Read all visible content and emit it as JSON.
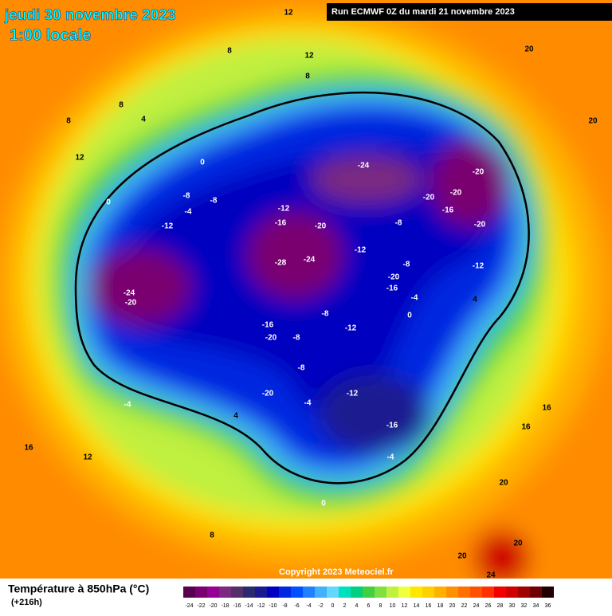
{
  "header": {
    "date": "jeudi 30 novembre 2023",
    "time": "1:00 locale",
    "run": "Run ECMWF 0Z du mardi 21 novembre 2023"
  },
  "footer": {
    "title": "Température à 850hPa (°C)",
    "lead": "(+216h)",
    "copyright": "Copyright 2023 Meteociel.fr"
  },
  "legend": {
    "labels": [
      "-24",
      "-22",
      "-20",
      "-18",
      "-16",
      "-14",
      "-12",
      "-10",
      "-8",
      "-6",
      "-4",
      "-2",
      "0",
      "2",
      "4",
      "6",
      "8",
      "10",
      "12",
      "14",
      "16",
      "18",
      "20",
      "22",
      "24",
      "26",
      "28",
      "30",
      "32",
      "34",
      "36"
    ],
    "colors": [
      "#5a0050",
      "#7a0070",
      "#950095",
      "#7a2a80",
      "#553068",
      "#2a2a70",
      "#1a1a90",
      "#0000c0",
      "#0028e0",
      "#0050ff",
      "#2080ff",
      "#40b0ff",
      "#60d8ff",
      "#00e0c0",
      "#00d080",
      "#40d040",
      "#80e040",
      "#c0f040",
      "#f0ff40",
      "#ffe800",
      "#ffd000",
      "#ffb000",
      "#ff9000",
      "#ff7000",
      "#ff5000",
      "#ff3000",
      "#f00000",
      "#d00000",
      "#a00000",
      "#700000",
      "#200000"
    ]
  },
  "contour_labels": [
    "12",
    "12",
    "8",
    "8",
    "8",
    "4",
    "8",
    "12",
    "0",
    "0",
    "-8",
    "-8",
    "-4",
    "-12",
    "-12",
    "-16",
    "-20",
    "-24",
    "-28",
    "-24",
    "-20",
    "-24",
    "-20",
    "-16",
    "-20",
    "-20",
    "-20",
    "-20",
    "-8",
    "-12",
    "-8",
    "-20",
    "-16",
    "-8",
    "-12",
    "-16",
    "-20",
    "-8",
    "-12",
    "-8",
    "-4",
    "-12",
    "-16",
    "-4",
    "4",
    "0",
    "20",
    "20",
    "20",
    "16",
    "16",
    "16",
    "12",
    "20",
    "20",
    "24",
    "-4",
    "4",
    "-4",
    "0",
    "8"
  ]
}
